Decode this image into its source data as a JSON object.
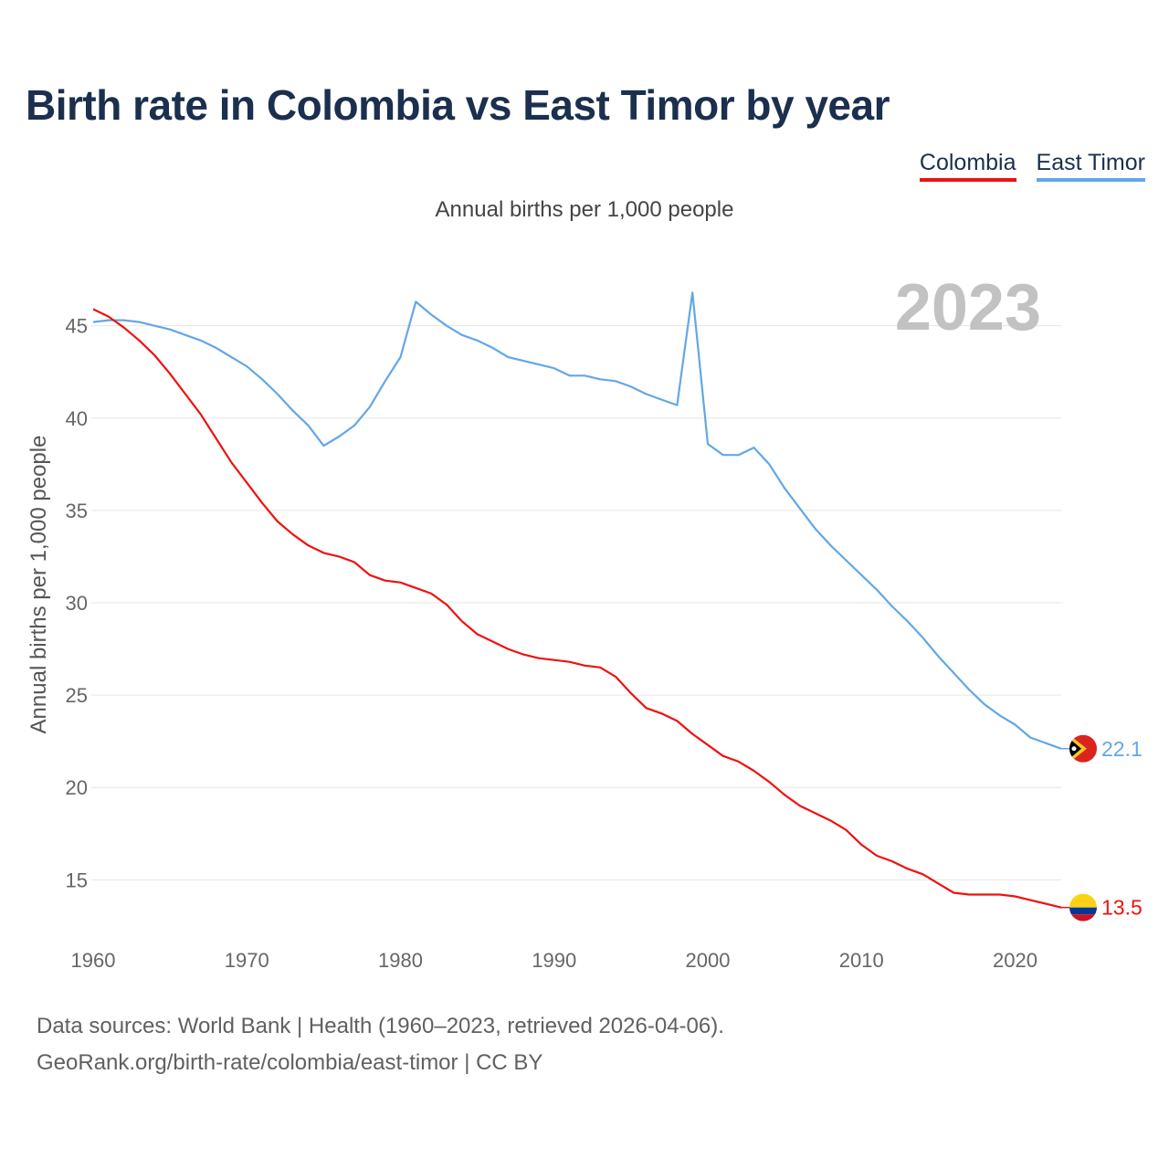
{
  "header": {
    "title": "Birth rate in Colombia vs East Timor by year",
    "subtitle": "Annual births per 1,000 people"
  },
  "legend": {
    "items": [
      {
        "label": "Colombia",
        "color": "#ee1111"
      },
      {
        "label": "East Timor",
        "color": "#63a7e6"
      }
    ]
  },
  "footer": {
    "line1": "Data sources: World Bank | Health (1960–2023, retrieved 2026-04-06).",
    "line2": "GeoRank.org/birth-rate/colombia/east-timor | CC BY"
  },
  "chart_data": {
    "type": "line",
    "title": "Birth rate in Colombia vs East Timor by year",
    "subtitle": "Annual births per 1,000 people",
    "xlabel": "",
    "ylabel": "Annual births per 1,000 people",
    "year_label": "2023",
    "xlim": [
      1960,
      2023
    ],
    "ylim": [
      12,
      48
    ],
    "x_ticks": [
      1960,
      1970,
      1980,
      1990,
      2000,
      2010,
      2020
    ],
    "y_ticks": [
      15,
      20,
      25,
      30,
      35,
      40,
      45
    ],
    "grid": true,
    "legend_position": "top-right",
    "x": [
      1960,
      1961,
      1962,
      1963,
      1964,
      1965,
      1966,
      1967,
      1968,
      1969,
      1970,
      1971,
      1972,
      1973,
      1974,
      1975,
      1976,
      1977,
      1978,
      1979,
      1980,
      1981,
      1982,
      1983,
      1984,
      1985,
      1986,
      1987,
      1988,
      1989,
      1990,
      1991,
      1992,
      1993,
      1994,
      1995,
      1996,
      1997,
      1998,
      1999,
      2000,
      2001,
      2002,
      2003,
      2004,
      2005,
      2006,
      2007,
      2008,
      2009,
      2010,
      2011,
      2012,
      2013,
      2014,
      2015,
      2016,
      2017,
      2018,
      2019,
      2020,
      2021,
      2022,
      2023
    ],
    "series": [
      {
        "name": "Colombia",
        "color": "#ee1111",
        "end_label": "13.5",
        "values": [
          45.9,
          45.5,
          44.9,
          44.2,
          43.4,
          42.4,
          41.3,
          40.2,
          38.9,
          37.6,
          36.5,
          35.4,
          34.4,
          33.7,
          33.1,
          32.7,
          32.5,
          32.2,
          31.5,
          31.2,
          31.1,
          30.8,
          30.5,
          29.9,
          29.0,
          28.3,
          27.9,
          27.5,
          27.2,
          27.0,
          26.9,
          26.8,
          26.6,
          26.5,
          26.0,
          25.1,
          24.3,
          24.0,
          23.6,
          22.9,
          22.3,
          21.7,
          21.4,
          20.9,
          20.3,
          19.6,
          19.0,
          18.6,
          18.2,
          17.7,
          16.9,
          16.3,
          16.0,
          15.6,
          15.3,
          14.8,
          14.3,
          14.2,
          14.2,
          14.2,
          14.1,
          13.9,
          13.7,
          13.5
        ]
      },
      {
        "name": "East Timor",
        "color": "#63a7e6",
        "end_label": "22.1",
        "values": [
          45.2,
          45.3,
          45.3,
          45.2,
          45.0,
          44.8,
          44.5,
          44.2,
          43.8,
          43.3,
          42.8,
          42.1,
          41.3,
          40.4,
          39.6,
          38.5,
          39.0,
          39.6,
          40.6,
          42.0,
          43.3,
          46.3,
          45.6,
          45.0,
          44.5,
          44.2,
          43.8,
          43.3,
          43.1,
          42.9,
          42.7,
          42.3,
          42.3,
          42.1,
          42.0,
          41.7,
          41.3,
          41.0,
          40.7,
          46.8,
          38.6,
          38.0,
          38.0,
          38.4,
          37.5,
          36.2,
          35.1,
          34.0,
          33.1,
          32.3,
          31.5,
          30.7,
          29.8,
          29.0,
          28.1,
          27.1,
          26.2,
          25.3,
          24.5,
          23.9,
          23.4,
          22.7,
          22.4,
          22.1
        ]
      }
    ]
  }
}
